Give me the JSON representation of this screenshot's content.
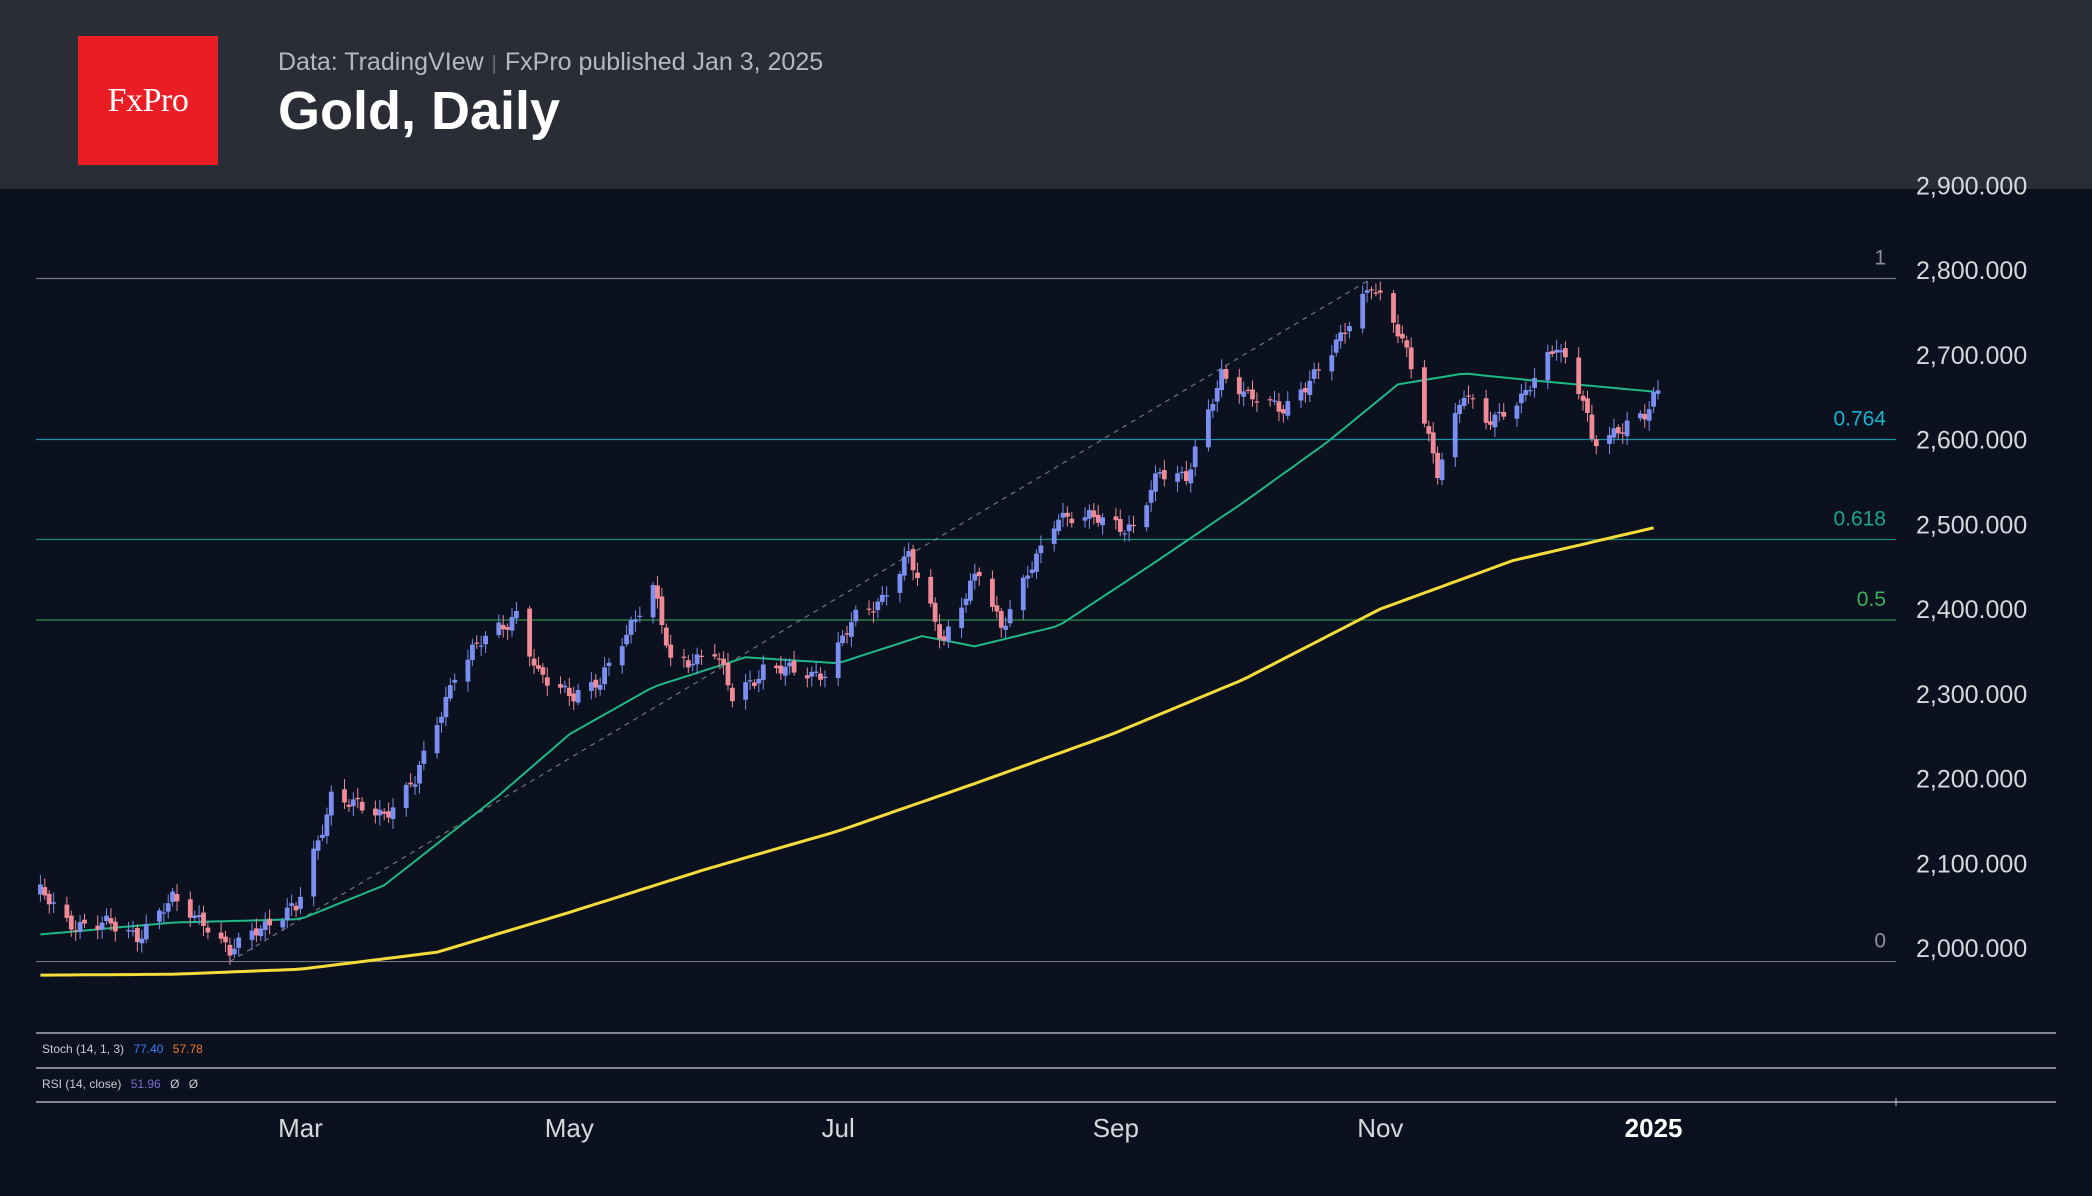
{
  "header": {
    "logo_text": "FxPro",
    "source_label": "Data: TradingVIew",
    "published_label": "FxPro published Jan 3, 2025",
    "title": "Gold, Daily"
  },
  "colors": {
    "background": "#0b111e",
    "header_bg": "#2a2d36",
    "logo_red": "#ea1c24",
    "candle_up": "#7b8ff0",
    "candle_down": "#ef8a96",
    "ma_fast": "#1fb887",
    "ma_slow": "#f5dc3a",
    "fib_0764": "#1ab3cc",
    "fib_0618": "#1aa78a",
    "fib_05": "#3cb15c",
    "fib_neutral": "#8a8f9a"
  },
  "indicators": {
    "stoch": {
      "label": "Stoch (14, 1, 3)",
      "k": "77.40",
      "d": "57.78",
      "k_color": "#3d7ff2",
      "d_color": "#f07a2a"
    },
    "rsi": {
      "label": "RSI (14, close)",
      "value": "51.96",
      "extra1": "Ø",
      "extra2": "Ø",
      "value_color": "#7a6fcf"
    }
  },
  "chart_data": {
    "type": "candlestick",
    "title": "Gold, Daily",
    "symbol": "Gold",
    "timeframe": "Daily",
    "ylim": [
      1940,
      2900
    ],
    "y_ticks": [
      2000,
      2100,
      2200,
      2300,
      2400,
      2500,
      2600,
      2700,
      2800,
      2900
    ],
    "y_tick_labels": [
      "2,000.000",
      "2,100.000",
      "2,200.000",
      "2,300.000",
      "2,400.000",
      "2,500.000",
      "2,600.000",
      "2,700.000",
      "2,800.000",
      "2,900.000"
    ],
    "x_labels": [
      {
        "label": "Mar",
        "date": "2024-03-01",
        "bold": false
      },
      {
        "label": "May",
        "date": "2024-05-01",
        "bold": false
      },
      {
        "label": "Jul",
        "date": "2024-07-01",
        "bold": false
      },
      {
        "label": "Sep",
        "date": "2024-09-02",
        "bold": false
      },
      {
        "label": "Nov",
        "date": "2024-11-01",
        "bold": false
      },
      {
        "label": "2025",
        "date": "2025-01-02",
        "bold": true
      }
    ],
    "x_start": "2024-01-01",
    "x_end": "2025-02-26",
    "close_anchors": [
      [
        "2024-01-02",
        2065
      ],
      [
        "2024-01-08",
        2030
      ],
      [
        "2024-01-16",
        2028
      ],
      [
        "2024-01-24",
        2016
      ],
      [
        "2024-02-01",
        2055
      ],
      [
        "2024-02-08",
        2034
      ],
      [
        "2024-02-14",
        1992
      ],
      [
        "2024-02-20",
        2025
      ],
      [
        "2024-02-29",
        2045
      ],
      [
        "2024-03-05",
        2128
      ],
      [
        "2024-03-08",
        2180
      ],
      [
        "2024-03-14",
        2165
      ],
      [
        "2024-03-20",
        2160
      ],
      [
        "2024-03-27",
        2195
      ],
      [
        "2024-04-05",
        2325
      ],
      [
        "2024-04-12",
        2365
      ],
      [
        "2024-04-19",
        2395
      ],
      [
        "2024-04-24",
        2318
      ],
      [
        "2024-05-02",
        2302
      ],
      [
        "2024-05-08",
        2310
      ],
      [
        "2024-05-15",
        2385
      ],
      [
        "2024-05-20",
        2425
      ],
      [
        "2024-05-24",
        2335
      ],
      [
        "2024-06-03",
        2350
      ],
      [
        "2024-06-07",
        2295
      ],
      [
        "2024-06-14",
        2330
      ],
      [
        "2024-06-21",
        2325
      ],
      [
        "2024-06-28",
        2326
      ],
      [
        "2024-07-05",
        2390
      ],
      [
        "2024-07-11",
        2415
      ],
      [
        "2024-07-17",
        2460
      ],
      [
        "2024-07-25",
        2365
      ],
      [
        "2024-08-02",
        2443
      ],
      [
        "2024-08-07",
        2382
      ],
      [
        "2024-08-15",
        2457
      ],
      [
        "2024-08-20",
        2513
      ],
      [
        "2024-08-28",
        2505
      ],
      [
        "2024-09-06",
        2497
      ],
      [
        "2024-09-12",
        2558
      ],
      [
        "2024-09-18",
        2560
      ],
      [
        "2024-09-26",
        2672
      ],
      [
        "2024-10-04",
        2652
      ],
      [
        "2024-10-10",
        2630
      ],
      [
        "2024-10-16",
        2674
      ],
      [
        "2024-10-23",
        2716
      ],
      [
        "2024-10-30",
        2788
      ],
      [
        "2024-11-04",
        2737
      ],
      [
        "2024-11-08",
        2686
      ],
      [
        "2024-11-14",
        2565
      ],
      [
        "2024-11-20",
        2651
      ],
      [
        "2024-11-25",
        2625
      ],
      [
        "2024-12-03",
        2643
      ],
      [
        "2024-12-11",
        2717
      ],
      [
        "2024-12-17",
        2645
      ],
      [
        "2024-12-19",
        2595
      ],
      [
        "2024-12-27",
        2620
      ],
      [
        "2024-12-31",
        2624
      ],
      [
        "2025-01-03",
        2658
      ]
    ],
    "ma_fast_anchors": [
      [
        "2024-01-02",
        2016
      ],
      [
        "2024-02-01",
        2030
      ],
      [
        "2024-03-01",
        2034
      ],
      [
        "2024-03-20",
        2074
      ],
      [
        "2024-04-15",
        2180
      ],
      [
        "2024-05-01",
        2252
      ],
      [
        "2024-05-20",
        2308
      ],
      [
        "2024-06-10",
        2343
      ],
      [
        "2024-07-01",
        2336
      ],
      [
        "2024-07-20",
        2368
      ],
      [
        "2024-08-01",
        2356
      ],
      [
        "2024-08-20",
        2380
      ],
      [
        "2024-09-10",
        2452
      ],
      [
        "2024-10-01",
        2526
      ],
      [
        "2024-10-20",
        2597
      ],
      [
        "2024-11-05",
        2665
      ],
      [
        "2024-11-20",
        2678
      ],
      [
        "2024-12-05",
        2670
      ],
      [
        "2025-01-03",
        2656
      ]
    ],
    "ma_slow_anchors": [
      [
        "2024-01-02",
        1968
      ],
      [
        "2024-02-01",
        1969
      ],
      [
        "2024-03-01",
        1975
      ],
      [
        "2024-04-01",
        1995
      ],
      [
        "2024-05-01",
        2042
      ],
      [
        "2024-06-01",
        2093
      ],
      [
        "2024-07-01",
        2138
      ],
      [
        "2024-08-01",
        2194
      ],
      [
        "2024-09-01",
        2252
      ],
      [
        "2024-10-01",
        2317
      ],
      [
        "2024-11-01",
        2400
      ],
      [
        "2024-12-01",
        2457
      ],
      [
        "2025-01-03",
        2497
      ]
    ],
    "fib": {
      "levels": [
        {
          "ratio": "1",
          "price": 2790
        },
        {
          "ratio": "0.764",
          "price": 2600
        },
        {
          "ratio": "0.618",
          "price": 2482
        },
        {
          "ratio": "0.5",
          "price": 2387
        },
        {
          "ratio": "0",
          "price": 1984
        }
      ],
      "trend_start": [
        "2024-02-14",
        1984
      ],
      "trend_end": [
        "2024-10-30",
        2790
      ]
    },
    "legend": "none",
    "grid": false
  }
}
